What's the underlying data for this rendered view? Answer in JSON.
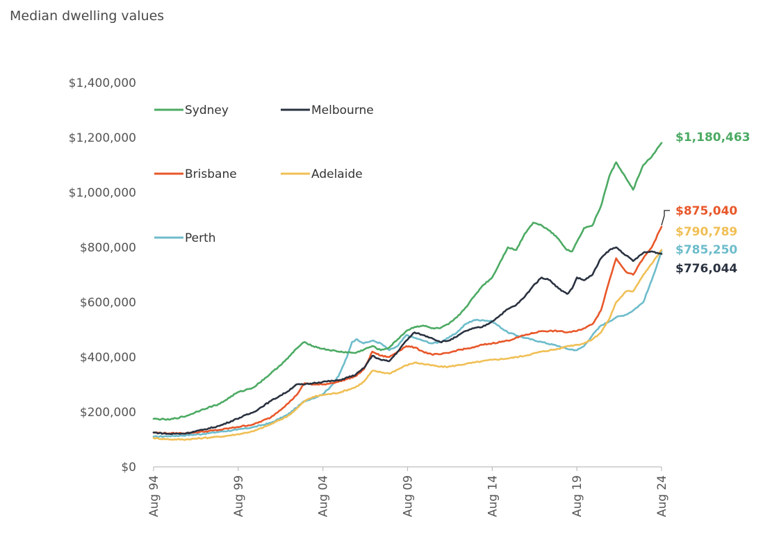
{
  "title": "Median dwelling values",
  "chart_data": {
    "type": "line",
    "title": "Median dwelling values",
    "xlabel": "",
    "ylabel": "",
    "ylim": [
      0,
      1400000
    ],
    "yticks": [
      0,
      200000,
      400000,
      600000,
      800000,
      1000000,
      1200000,
      1400000
    ],
    "ytick_labels": [
      "$0",
      "$200,000",
      "$400,000",
      "$600,000",
      "$800,000",
      "$1,000,000",
      "$1,200,000",
      "$1,400,000"
    ],
    "xlim": [
      1994.58,
      2024.58
    ],
    "xticks": [
      1994.58,
      1999.58,
      2004.58,
      2009.58,
      2014.58,
      2019.58,
      2024.58
    ],
    "xtick_labels": [
      "Aug 94",
      "Aug 99",
      "Aug 04",
      "Aug 09",
      "Aug 14",
      "Aug 19",
      "Aug 24"
    ],
    "grid": false,
    "legend_placement": "top-left",
    "series": [
      {
        "name": "Sydney",
        "color": "#4caa63",
        "end_label": "$1,180,463",
        "x": [
          1994.58,
          1995.5,
          1996.5,
          1997.5,
          1998.5,
          1999.5,
          2000.5,
          2001.5,
          2002.5,
          2003.0,
          2003.5,
          2004.0,
          2004.58,
          2005.5,
          2006.5,
          2007.5,
          2008.0,
          2008.5,
          2009.0,
          2009.5,
          2010.0,
          2010.5,
          2011.0,
          2011.5,
          2012.0,
          2012.5,
          2013.0,
          2013.5,
          2014.0,
          2014.58,
          2015.0,
          2015.5,
          2016.0,
          2016.5,
          2017.0,
          2017.5,
          2018.0,
          2018.5,
          2019.0,
          2019.3,
          2019.58,
          2020.0,
          2020.5,
          2021.0,
          2021.5,
          2021.9,
          2022.5,
          2022.9,
          2023.5,
          2024.0,
          2024.58
        ],
        "values": [
          175000,
          172000,
          185000,
          210000,
          230000,
          270000,
          290000,
          340000,
          395000,
          430000,
          455000,
          440000,
          430000,
          420000,
          415000,
          440000,
          425000,
          435000,
          465000,
          495000,
          510000,
          515000,
          505000,
          505000,
          520000,
          545000,
          580000,
          620000,
          660000,
          690000,
          740000,
          800000,
          790000,
          850000,
          890000,
          880000,
          860000,
          830000,
          790000,
          785000,
          820000,
          870000,
          880000,
          950000,
          1060000,
          1110000,
          1050000,
          1010000,
          1100000,
          1130000,
          1180463
        ]
      },
      {
        "name": "Melbourne",
        "color": "#2a3240",
        "end_label": "$776,044",
        "x": [
          1994.58,
          1995.5,
          1996.5,
          1997.5,
          1998.5,
          1999.5,
          2000.5,
          2001.5,
          2002.5,
          2003.0,
          2003.5,
          2004.0,
          2004.58,
          2005.5,
          2006.5,
          2007.0,
          2007.5,
          2008.0,
          2008.5,
          2009.0,
          2009.5,
          2010.0,
          2010.5,
          2011.0,
          2011.5,
          2012.0,
          2012.5,
          2013.0,
          2013.5,
          2014.0,
          2014.58,
          2015.0,
          2015.5,
          2016.0,
          2016.5,
          2017.0,
          2017.5,
          2018.0,
          2018.5,
          2019.0,
          2019.3,
          2019.58,
          2020.0,
          2020.5,
          2021.0,
          2021.5,
          2021.9,
          2022.5,
          2022.9,
          2023.5,
          2024.0,
          2024.58
        ],
        "values": [
          125000,
          120000,
          122000,
          135000,
          150000,
          175000,
          200000,
          240000,
          275000,
          300000,
          300000,
          305000,
          310000,
          315000,
          335000,
          360000,
          405000,
          390000,
          385000,
          420000,
          460000,
          490000,
          480000,
          470000,
          455000,
          460000,
          475000,
          495000,
          505000,
          510000,
          530000,
          550000,
          575000,
          590000,
          620000,
          660000,
          690000,
          680000,
          650000,
          630000,
          650000,
          690000,
          680000,
          700000,
          760000,
          790000,
          800000,
          770000,
          750000,
          780000,
          785000,
          776044
        ]
      },
      {
        "name": "Brisbane",
        "color": "#e8572a",
        "end_label": "$875,040",
        "x": [
          1994.58,
          1995.5,
          1996.5,
          1997.5,
          1998.5,
          1999.5,
          2000.5,
          2001.5,
          2002.5,
          2003.0,
          2003.5,
          2004.0,
          2004.58,
          2005.5,
          2006.5,
          2007.0,
          2007.5,
          2008.0,
          2008.5,
          2009.0,
          2009.5,
          2010.0,
          2010.5,
          2011.0,
          2011.5,
          2012.0,
          2012.5,
          2013.0,
          2013.5,
          2014.0,
          2014.58,
          2015.5,
          2016.5,
          2017.5,
          2018.5,
          2019.0,
          2019.58,
          2020.0,
          2020.5,
          2021.0,
          2021.5,
          2021.9,
          2022.5,
          2022.9,
          2023.5,
          2024.0,
          2024.58
        ],
        "values": [
          125000,
          122000,
          123000,
          128000,
          135000,
          145000,
          155000,
          180000,
          230000,
          260000,
          305000,
          300000,
          300000,
          310000,
          330000,
          355000,
          420000,
          405000,
          400000,
          420000,
          440000,
          435000,
          420000,
          410000,
          410000,
          415000,
          425000,
          430000,
          435000,
          445000,
          450000,
          460000,
          480000,
          495000,
          495000,
          490000,
          495000,
          505000,
          520000,
          570000,
          680000,
          760000,
          710000,
          700000,
          760000,
          800000,
          875040
        ]
      },
      {
        "name": "Adelaide",
        "color": "#f0bf55",
        "end_label": "$790,789",
        "x": [
          1994.58,
          1995.5,
          1996.5,
          1997.5,
          1998.5,
          1999.5,
          2000.5,
          2001.5,
          2002.5,
          2003.0,
          2003.5,
          2004.0,
          2004.58,
          2005.5,
          2006.5,
          2007.0,
          2007.5,
          2008.0,
          2008.5,
          2009.0,
          2009.5,
          2010.0,
          2010.5,
          2011.0,
          2011.5,
          2012.0,
          2012.5,
          2013.0,
          2013.5,
          2014.0,
          2014.58,
          2015.5,
          2016.5,
          2017.5,
          2018.5,
          2019.0,
          2019.58,
          2020.0,
          2020.5,
          2021.0,
          2021.5,
          2021.9,
          2022.5,
          2022.9,
          2023.5,
          2024.0,
          2024.58
        ],
        "values": [
          105000,
          100000,
          100000,
          105000,
          110000,
          118000,
          130000,
          155000,
          185000,
          210000,
          240000,
          255000,
          262000,
          270000,
          290000,
          310000,
          350000,
          345000,
          340000,
          355000,
          370000,
          380000,
          375000,
          370000,
          365000,
          365000,
          370000,
          375000,
          380000,
          385000,
          390000,
          395000,
          405000,
          420000,
          430000,
          440000,
          445000,
          450000,
          465000,
          490000,
          540000,
          600000,
          640000,
          640000,
          700000,
          740000,
          790789
        ]
      },
      {
        "name": "Perth",
        "color": "#6dbccb",
        "end_label": "$785,250",
        "x": [
          1994.58,
          1995.5,
          1996.5,
          1997.5,
          1998.5,
          1999.5,
          2000.5,
          2001.5,
          2002.5,
          2003.0,
          2003.5,
          2004.0,
          2004.58,
          2005.0,
          2005.5,
          2006.0,
          2006.3,
          2006.6,
          2007.0,
          2007.5,
          2008.0,
          2008.5,
          2009.0,
          2009.5,
          2010.0,
          2010.5,
          2011.0,
          2011.5,
          2012.0,
          2012.5,
          2013.0,
          2013.5,
          2014.0,
          2014.58,
          2015.5,
          2016.5,
          2017.5,
          2018.5,
          2019.0,
          2019.58,
          2020.0,
          2020.5,
          2021.0,
          2021.5,
          2021.9,
          2022.5,
          2022.9,
          2023.5,
          2024.0,
          2024.58
        ],
        "values": [
          110000,
          112000,
          115000,
          120000,
          128000,
          135000,
          145000,
          160000,
          190000,
          215000,
          240000,
          250000,
          265000,
          290000,
          330000,
          400000,
          455000,
          465000,
          450000,
          460000,
          450000,
          425000,
          440000,
          480000,
          470000,
          460000,
          450000,
          455000,
          470000,
          490000,
          520000,
          535000,
          535000,
          530000,
          490000,
          470000,
          455000,
          440000,
          430000,
          425000,
          440000,
          480000,
          515000,
          530000,
          545000,
          555000,
          570000,
          600000,
          680000,
          785250
        ]
      }
    ]
  }
}
